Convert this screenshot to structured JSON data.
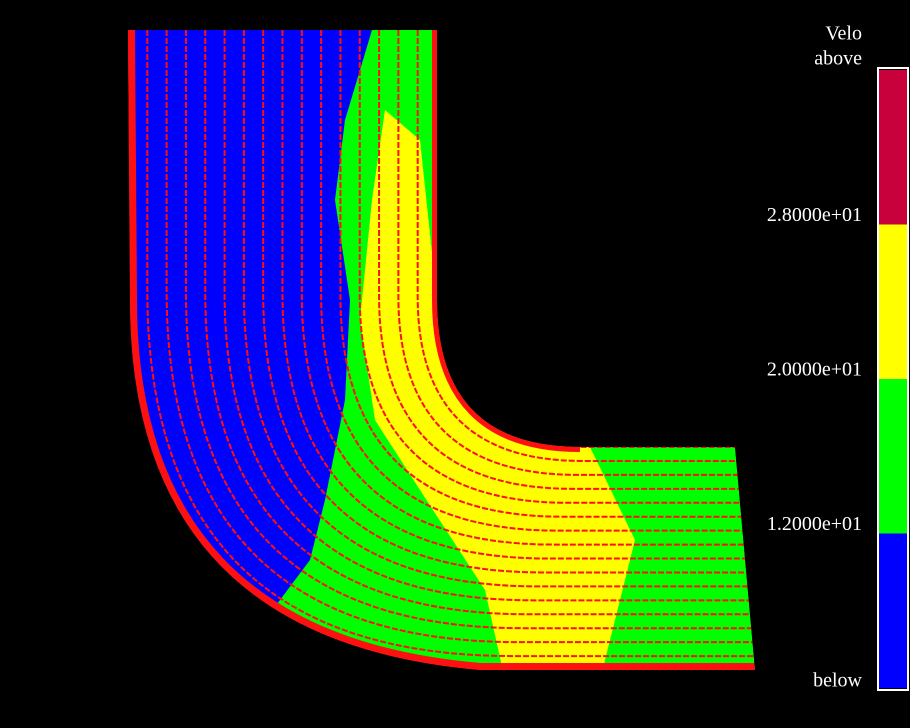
{
  "legend": {
    "title": "Velo",
    "labels": [
      "above",
      "2.8000e+01",
      "2.0000e+01",
      "1.2000e+01",
      "below"
    ],
    "colors": [
      "#c8003c",
      "#ffff00",
      "#00ff00",
      "#0000ff"
    ]
  }
}
